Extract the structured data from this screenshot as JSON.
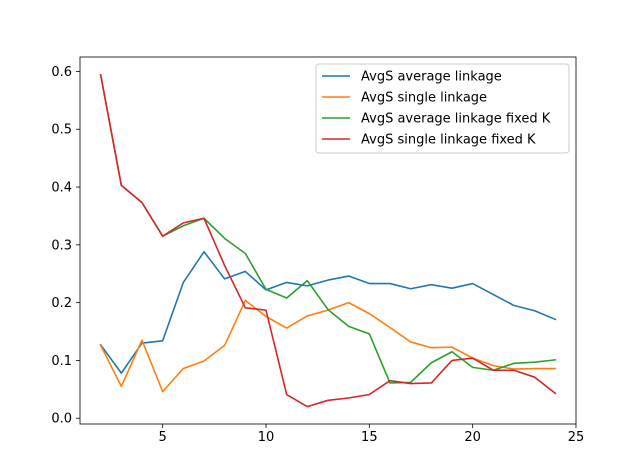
{
  "chart_data": {
    "type": "line",
    "title": "",
    "xlabel": "",
    "ylabel": "",
    "xlim": [
      1.0,
      25.0
    ],
    "ylim": [
      -0.01,
      0.625
    ],
    "xticks": [
      5,
      10,
      15,
      20,
      25
    ],
    "yticks": [
      0.0,
      0.1,
      0.2,
      0.3,
      0.4,
      0.5,
      0.6
    ],
    "xtick_labels": [
      "5",
      "10",
      "15",
      "20",
      "25"
    ],
    "ytick_labels": [
      "0.0",
      "0.1",
      "0.2",
      "0.3",
      "0.4",
      "0.5",
      "0.6"
    ],
    "grid": false,
    "legend_position": "top-right",
    "x": [
      2,
      3,
      4,
      5,
      6,
      7,
      8,
      9,
      10,
      11,
      12,
      13,
      14,
      15,
      16,
      17,
      18,
      19,
      20,
      21,
      22,
      23,
      24
    ],
    "series": [
      {
        "name": "AvgS average linkage",
        "color": "#1f77b4",
        "values": [
          0.127,
          0.078,
          0.13,
          0.134,
          0.235,
          0.288,
          0.241,
          0.254,
          0.222,
          0.235,
          0.229,
          0.239,
          0.246,
          0.233,
          0.233,
          0.224,
          0.231,
          0.225,
          0.233,
          0.214,
          0.195,
          0.186,
          0.171
        ]
      },
      {
        "name": "AvgS single linkage",
        "color": "#ff7f0e",
        "values": [
          0.126,
          0.055,
          0.135,
          0.046,
          0.086,
          0.099,
          0.126,
          0.204,
          0.176,
          0.156,
          0.177,
          0.187,
          0.2,
          0.181,
          0.157,
          0.132,
          0.122,
          0.123,
          0.104,
          0.091,
          0.085,
          0.086,
          0.086
        ]
      },
      {
        "name": "AvgS average linkage fixed K",
        "color": "#2ca02c",
        "values": [
          0.594,
          0.403,
          0.373,
          0.315,
          0.333,
          0.346,
          0.311,
          0.285,
          0.223,
          0.208,
          0.238,
          0.188,
          0.159,
          0.146,
          0.061,
          0.062,
          0.096,
          0.115,
          0.088,
          0.083,
          0.095,
          0.097,
          0.101
        ]
      },
      {
        "name": "AvgS single linkage fixed K",
        "color": "#d62728",
        "values": [
          0.594,
          0.403,
          0.373,
          0.315,
          0.338,
          0.346,
          0.264,
          0.191,
          0.187,
          0.041,
          0.02,
          0.031,
          0.035,
          0.041,
          0.065,
          0.06,
          0.061,
          0.1,
          0.104,
          0.083,
          0.083,
          0.071,
          0.043
        ]
      }
    ]
  }
}
